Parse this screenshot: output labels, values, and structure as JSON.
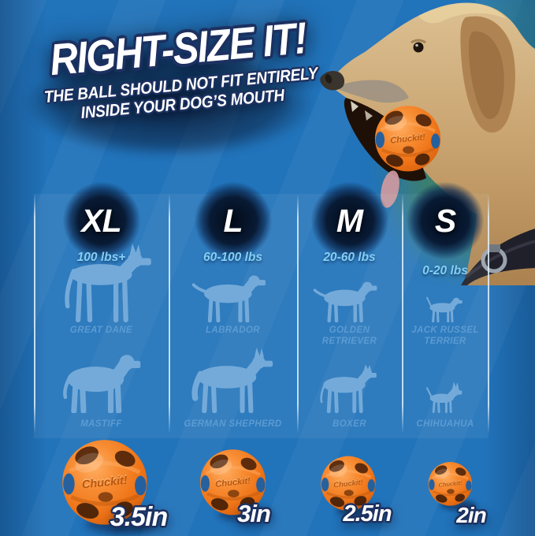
{
  "title": {
    "text": "RIGHT-SIZE IT!",
    "sub1": "THE BALL SHOULD NOT FIT ENTIRELY",
    "sub2": "INSIDE YOUR DOG’S MOUTH"
  },
  "brand_on_ball": "Chuckit!",
  "size_columns": [
    {
      "size": "XL",
      "weight": "100 lbs+",
      "breed1": "GREAT DANE",
      "breed2": "MASTIFF"
    },
    {
      "size": "L",
      "weight": "60-100 lbs",
      "breed1": "LABRADOR",
      "breed2": "GERMAN SHEPHERD"
    },
    {
      "size": "M",
      "weight": "20-60 lbs",
      "breed1": "GOLDEN\nRETRIEVER",
      "breed2": "BOXER"
    },
    {
      "size": "S",
      "weight": "0-20 lbs",
      "breed1": "JACK RUSSEL\nTERRIER",
      "breed2": "CHIHUAHUA"
    }
  ],
  "balls": [
    {
      "size_label": "3.5in"
    },
    {
      "size_label": "3in"
    },
    {
      "size_label": "2.5in"
    },
    {
      "size_label": "2in"
    }
  ],
  "colors": {
    "background_blue": "#2173ba",
    "outline_navy": "#1c3160",
    "weight_text_blue": "#84cef3",
    "breed_text_blue": "#5b9bd2",
    "silhouette_blue": "#74aad9",
    "divider_blue": "#dff0fc",
    "ball_orange": "#f5822a"
  }
}
